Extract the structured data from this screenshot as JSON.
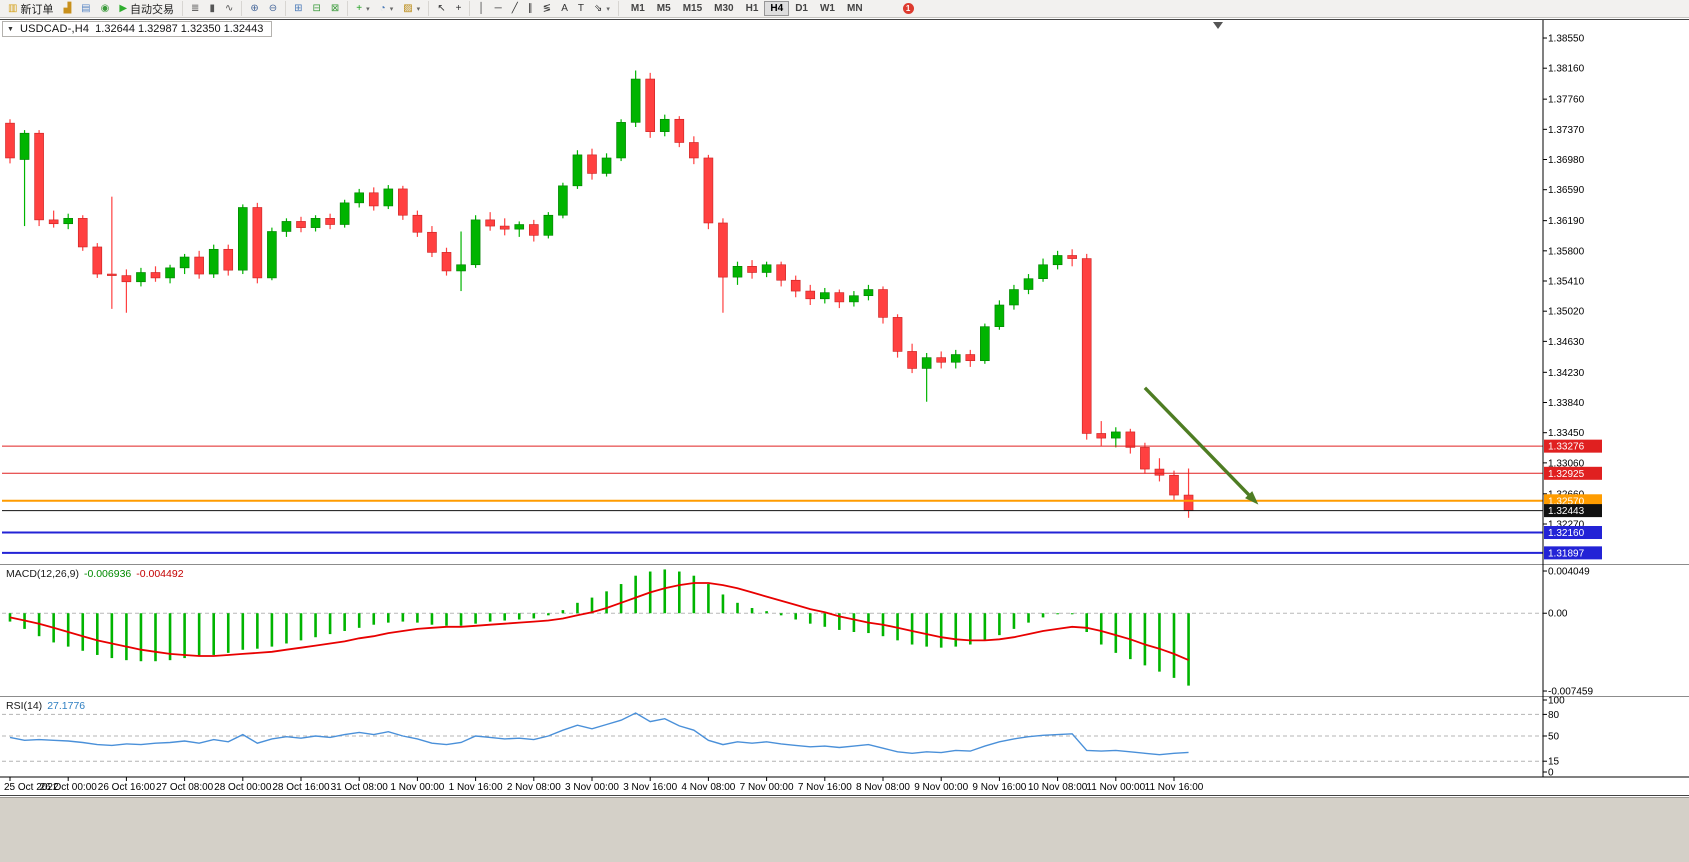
{
  "toolbar": {
    "groups": [
      {
        "items": [
          {
            "name": "new-order-button",
            "icon": "new-order-icon",
            "glyph": "▥",
            "color": "#d4a017",
            "label": "新订单"
          },
          {
            "name": "new-chart-button",
            "icon": "chart-window-icon",
            "glyph": "▟",
            "color": "#c8901c"
          },
          {
            "name": "profiles-button",
            "icon": "profiles-icon",
            "glyph": "▤",
            "color": "#5b87c5"
          },
          {
            "name": "market-watch-button",
            "icon": "market-watch-icon",
            "glyph": "◉",
            "color": "#3a9a3a"
          },
          {
            "name": "autotrading-button",
            "icon": "autotrading-play-icon",
            "glyph": "▶",
            "color": "#2fae2f",
            "label": "自动交易"
          }
        ]
      },
      {
        "items": [
          {
            "name": "bar-chart-button",
            "icon": "bar-chart-icon",
            "glyph": "≣",
            "color": "#555555"
          },
          {
            "name": "candlestick-chart-button",
            "icon": "candlestick-icon",
            "glyph": "▮",
            "color": "#555555"
          },
          {
            "name": "line-chart-button",
            "icon": "line-chart-icon",
            "glyph": "∿",
            "color": "#555555"
          }
        ]
      },
      {
        "items": [
          {
            "name": "zoom-in-button",
            "icon": "zoom-in-icon",
            "glyph": "⊕",
            "color": "#46679a"
          },
          {
            "name": "zoom-out-button",
            "icon": "zoom-out-icon",
            "glyph": "⊖",
            "color": "#46679a"
          }
        ]
      },
      {
        "items": [
          {
            "name": "tile-windows-button",
            "icon": "tile-windows-icon",
            "glyph": "⊞",
            "color": "#4a7ab8"
          },
          {
            "name": "auto-arrange-button",
            "icon": "auto-arrange-icon",
            "glyph": "⊟",
            "color": "#3a9a3a"
          },
          {
            "name": "track-chart-button",
            "icon": "track-chart-icon",
            "glyph": "⊠",
            "color": "#3a9a3a"
          }
        ]
      },
      {
        "items": [
          {
            "name": "indicators-button",
            "icon": "indicator-plus-icon",
            "glyph": "+",
            "color": "#1fa01f",
            "caret": true
          },
          {
            "name": "periods-button",
            "icon": "clock-icon",
            "glyph": "◔",
            "color": "#4a7ab8",
            "caret": true
          },
          {
            "name": "templates-button",
            "icon": "template-icon",
            "glyph": "▨",
            "color": "#b8860b",
            "caret": true
          }
        ]
      },
      {
        "items": [
          {
            "name": "cursor-button",
            "icon": "cursor-icon",
            "glyph": "↖",
            "color": "#333333"
          },
          {
            "name": "crosshair-button",
            "icon": "crosshair-icon",
            "glyph": "+",
            "color": "#333333"
          }
        ]
      },
      {
        "items": [
          {
            "name": "vertical-line-button",
            "icon": "vertical-line-icon",
            "glyph": "│",
            "color": "#333333"
          },
          {
            "name": "horizontal-line-button",
            "icon": "horizontal-line-icon",
            "glyph": "─",
            "color": "#333333"
          },
          {
            "name": "trendline-button",
            "icon": "trendline-icon",
            "glyph": "╱",
            "color": "#333333"
          },
          {
            "name": "channel-button",
            "icon": "channel-icon",
            "glyph": "∥",
            "color": "#333333"
          },
          {
            "name": "fibonacci-button",
            "icon": "fibonacci-icon",
            "glyph": "≶",
            "color": "#333333"
          },
          {
            "name": "text-button",
            "icon": "text-icon",
            "glyph": "A",
            "color": "#333333"
          },
          {
            "name": "label-button",
            "icon": "label-icon",
            "glyph": "T",
            "color": "#333333"
          },
          {
            "name": "arrows-button",
            "icon": "arrow-tool-icon",
            "glyph": "⇘",
            "color": "#333333",
            "caret": true
          }
        ]
      }
    ],
    "timeframes": [
      "M1",
      "M5",
      "M15",
      "M30",
      "H1",
      "H4",
      "D1",
      "W1",
      "MN"
    ],
    "active_timeframe": "H4",
    "notification": {
      "value": "1"
    }
  },
  "chart": {
    "symbol_period": "USDCAD-,H4",
    "ohlc": "1.32644 1.32987 1.32350 1.32443",
    "macd_name": "MACD(12,26,9)",
    "macd_value": "-0.006936",
    "macd_signal_value": "-0.004492",
    "rsi_name": "RSI(14)",
    "rsi_value": "27.1776"
  },
  "chart_data": {
    "type": "candlestick",
    "symbol": "USDCAD",
    "timeframe": "H4",
    "bars_per_label": 4,
    "x_labels": [
      "25 Oct 2022",
      "26 Oct 00:00",
      "26 Oct 16:00",
      "27 Oct 08:00",
      "28 Oct 00:00",
      "28 Oct 16:00",
      "31 Oct 08:00",
      "1 Nov 00:00",
      "1 Nov 16:00",
      "2 Nov 08:00",
      "3 Nov 00:00",
      "3 Nov 16:00",
      "4 Nov 08:00",
      "7 Nov 00:00",
      "7 Nov 16:00",
      "8 Nov 08:00",
      "9 Nov 00:00",
      "9 Nov 16:00",
      "10 Nov 08:00",
      "11 Nov 00:00",
      "11 Nov 16:00"
    ],
    "colors": {
      "up": "#00b400",
      "down": "#ff4040",
      "up_edge": "#007d00",
      "down_edge": "#c92020"
    },
    "main": {
      "ylim": [
        1.31766,
        1.38757
      ],
      "ticks": [
        "1.38550",
        "1.38160",
        "1.37760",
        "1.37370",
        "1.36980",
        "1.36590",
        "1.36190",
        "1.35800",
        "1.35410",
        "1.35020",
        "1.34630",
        "1.34230",
        "1.33840",
        "1.33450",
        "1.33060",
        "1.32660",
        "1.32270"
      ]
    },
    "candles": [
      [
        1.3745,
        1.375,
        1.3693,
        1.37
      ],
      [
        1.3698,
        1.3736,
        1.3612,
        1.3732
      ],
      [
        1.3732,
        1.3736,
        1.3612,
        1.362
      ],
      [
        1.362,
        1.3632,
        1.361,
        1.3615
      ],
      [
        1.3615,
        1.3628,
        1.3608,
        1.3622
      ],
      [
        1.3622,
        1.3626,
        1.358,
        1.3585
      ],
      [
        1.3585,
        1.359,
        1.3545,
        1.355
      ],
      [
        1.355,
        1.365,
        1.3505,
        1.3548
      ],
      [
        1.3548,
        1.3556,
        1.35,
        1.354
      ],
      [
        1.354,
        1.3558,
        1.3534,
        1.3552
      ],
      [
        1.3552,
        1.356,
        1.354,
        1.3545
      ],
      [
        1.3545,
        1.3562,
        1.3538,
        1.3558
      ],
      [
        1.3558,
        1.3576,
        1.355,
        1.3572
      ],
      [
        1.3572,
        1.358,
        1.3544,
        1.355
      ],
      [
        1.355,
        1.3588,
        1.3545,
        1.3582
      ],
      [
        1.3582,
        1.3588,
        1.3548,
        1.3555
      ],
      [
        1.3555,
        1.364,
        1.355,
        1.3636
      ],
      [
        1.3636,
        1.3642,
        1.3538,
        1.3545
      ],
      [
        1.3545,
        1.361,
        1.3542,
        1.3605
      ],
      [
        1.3605,
        1.3622,
        1.3598,
        1.3618
      ],
      [
        1.3618,
        1.3624,
        1.3604,
        1.361
      ],
      [
        1.361,
        1.3626,
        1.3605,
        1.3622
      ],
      [
        1.3622,
        1.3628,
        1.3608,
        1.3614
      ],
      [
        1.3614,
        1.3646,
        1.361,
        1.3642
      ],
      [
        1.3642,
        1.366,
        1.3636,
        1.3655
      ],
      [
        1.3655,
        1.3662,
        1.3632,
        1.3638
      ],
      [
        1.3638,
        1.3665,
        1.3634,
        1.366
      ],
      [
        1.366,
        1.3664,
        1.362,
        1.3626
      ],
      [
        1.3626,
        1.3632,
        1.3598,
        1.3604
      ],
      [
        1.3604,
        1.3612,
        1.3572,
        1.3578
      ],
      [
        1.3578,
        1.3584,
        1.3548,
        1.3554
      ],
      [
        1.3554,
        1.3605,
        1.3528,
        1.3562
      ],
      [
        1.3562,
        1.3626,
        1.3558,
        1.362
      ],
      [
        1.362,
        1.363,
        1.3606,
        1.3612
      ],
      [
        1.3612,
        1.3622,
        1.36,
        1.3608
      ],
      [
        1.3608,
        1.3618,
        1.3598,
        1.3614
      ],
      [
        1.3614,
        1.362,
        1.3592,
        1.36
      ],
      [
        1.36,
        1.363,
        1.3596,
        1.3626
      ],
      [
        1.3626,
        1.3668,
        1.3622,
        1.3664
      ],
      [
        1.3664,
        1.371,
        1.366,
        1.3704
      ],
      [
        1.3704,
        1.3712,
        1.3672,
        1.368
      ],
      [
        1.368,
        1.3706,
        1.3676,
        1.37
      ],
      [
        1.37,
        1.375,
        1.3696,
        1.3746
      ],
      [
        1.3746,
        1.3813,
        1.374,
        1.3802
      ],
      [
        1.3802,
        1.381,
        1.3726,
        1.3734
      ],
      [
        1.3734,
        1.3756,
        1.3728,
        1.375
      ],
      [
        1.375,
        1.3754,
        1.3714,
        1.372
      ],
      [
        1.372,
        1.3728,
        1.3692,
        1.37
      ],
      [
        1.37,
        1.3704,
        1.3608,
        1.3616
      ],
      [
        1.3616,
        1.3622,
        1.35,
        1.3546
      ],
      [
        1.3546,
        1.3566,
        1.3536,
        1.356
      ],
      [
        1.356,
        1.3568,
        1.3544,
        1.3552
      ],
      [
        1.3552,
        1.3566,
        1.3546,
        1.3562
      ],
      [
        1.3562,
        1.3566,
        1.3534,
        1.3542
      ],
      [
        1.3542,
        1.3548,
        1.352,
        1.3528
      ],
      [
        1.3528,
        1.3536,
        1.351,
        1.3518
      ],
      [
        1.3518,
        1.3532,
        1.3512,
        1.3526
      ],
      [
        1.3526,
        1.353,
        1.3506,
        1.3514
      ],
      [
        1.3514,
        1.3528,
        1.3508,
        1.3522
      ],
      [
        1.3522,
        1.3536,
        1.3516,
        1.353
      ],
      [
        1.353,
        1.3534,
        1.3486,
        1.3494
      ],
      [
        1.3494,
        1.3498,
        1.3442,
        1.345
      ],
      [
        1.345,
        1.346,
        1.3422,
        1.3428
      ],
      [
        1.3428,
        1.3448,
        1.3385,
        1.3442
      ],
      [
        1.3442,
        1.345,
        1.3428,
        1.3436
      ],
      [
        1.3436,
        1.3452,
        1.3428,
        1.3446
      ],
      [
        1.3446,
        1.3452,
        1.343,
        1.3438
      ],
      [
        1.3438,
        1.3486,
        1.3434,
        1.3482
      ],
      [
        1.3482,
        1.3516,
        1.3478,
        1.351
      ],
      [
        1.351,
        1.3536,
        1.3504,
        1.353
      ],
      [
        1.353,
        1.355,
        1.3524,
        1.3544
      ],
      [
        1.3544,
        1.357,
        1.354,
        1.3562
      ],
      [
        1.3562,
        1.358,
        1.3556,
        1.3574
      ],
      [
        1.3574,
        1.3582,
        1.356,
        1.357
      ],
      [
        1.357,
        1.3576,
        1.3336,
        1.3344
      ],
      [
        1.3344,
        1.336,
        1.3328,
        1.3338
      ],
      [
        1.3338,
        1.3352,
        1.3326,
        1.3346
      ],
      [
        1.3346,
        1.335,
        1.3318,
        1.3326
      ],
      [
        1.3326,
        1.3332,
        1.3292,
        1.3298
      ],
      [
        1.3298,
        1.3312,
        1.3282,
        1.329
      ],
      [
        1.329,
        1.3296,
        1.3258,
        1.32644
      ],
      [
        1.32644,
        1.32987,
        1.3235,
        1.32443
      ]
    ],
    "hlines": [
      {
        "value": 1.33276,
        "label": "1.33276",
        "color": "#e02020",
        "width": 1,
        "role": "resistance-line"
      },
      {
        "value": 1.32925,
        "label": "1.32925",
        "color": "#e02020",
        "width": 1,
        "role": "resistance-line"
      },
      {
        "value": 1.3257,
        "label": "1.32570",
        "color": "#ff9c00",
        "width": 2,
        "role": "support-line"
      },
      {
        "value": 1.32443,
        "label": "1.32443",
        "color": "#111111",
        "width": 1,
        "role": "bid-price-line"
      },
      {
        "value": 1.3216,
        "label": "1.32160",
        "color": "#2323d6",
        "width": 2,
        "role": "support-line"
      },
      {
        "value": 1.31897,
        "label": "1.31897",
        "color": "#2323d6",
        "width": 2,
        "role": "support-line"
      }
    ],
    "arrow": {
      "from_bar": 78,
      "from_price": 1.3403,
      "to_bar": 85.8,
      "to_price": 1.3252,
      "color": "#4e7d23"
    },
    "macd": {
      "ylim": [
        -0.00784,
        0.00453
      ],
      "axis_labels": [
        {
          "text": "0.004049",
          "value": 0.004049
        },
        {
          "text": "0.00",
          "value": 0
        },
        {
          "text": "-0.007459",
          "value": -0.007459
        }
      ],
      "hist_color": "#00b400",
      "signal_color": "#e80000",
      "histogram": [
        -0.0008,
        -0.0015,
        -0.0022,
        -0.0028,
        -0.0032,
        -0.0036,
        -0.004,
        -0.0043,
        -0.0045,
        -0.0046,
        -0.0046,
        -0.0045,
        -0.0043,
        -0.0041,
        -0.004,
        -0.0038,
        -0.0035,
        -0.0034,
        -0.0032,
        -0.0029,
        -0.0026,
        -0.0023,
        -0.002,
        -0.0017,
        -0.0014,
        -0.0011,
        -0.0009,
        -0.0008,
        -0.0009,
        -0.0011,
        -0.0012,
        -0.0012,
        -0.001,
        -0.0008,
        -0.0007,
        -0.0006,
        -0.0005,
        -0.0002,
        0.0003,
        0.001,
        0.0015,
        0.0021,
        0.0028,
        0.0036,
        0.004,
        0.0042,
        0.004,
        0.0036,
        0.0028,
        0.0018,
        0.001,
        0.0005,
        0.0002,
        -0.0002,
        -0.0006,
        -0.001,
        -0.0013,
        -0.0016,
        -0.0018,
        -0.0019,
        -0.0022,
        -0.0026,
        -0.003,
        -0.0032,
        -0.0033,
        -0.0032,
        -0.003,
        -0.0026,
        -0.0021,
        -0.0015,
        -0.0009,
        -0.0004,
        -0.0001,
        -0.0001,
        -0.0018,
        -0.003,
        -0.0038,
        -0.0044,
        -0.005,
        -0.0056,
        -0.0062,
        -0.006936
      ],
      "signal": [
        -0.0004,
        -0.0007,
        -0.001,
        -0.0014,
        -0.0018,
        -0.0022,
        -0.0026,
        -0.0029,
        -0.0032,
        -0.0035,
        -0.0037,
        -0.0039,
        -0.004,
        -0.0041,
        -0.0041,
        -0.004,
        -0.0039,
        -0.0038,
        -0.0037,
        -0.0035,
        -0.0033,
        -0.0031,
        -0.0029,
        -0.0027,
        -0.0024,
        -0.0022,
        -0.0019,
        -0.0017,
        -0.0015,
        -0.0014,
        -0.0013,
        -0.0013,
        -0.0012,
        -0.0011,
        -0.001,
        -0.0009,
        -0.0008,
        -0.0007,
        -0.0005,
        -0.0002,
        0.0001,
        0.0005,
        0.001,
        0.0015,
        0.002,
        0.0024,
        0.0027,
        0.0029,
        0.0029,
        0.0027,
        0.0024,
        0.002,
        0.0016,
        0.0012,
        0.0008,
        0.0004,
        0.0001,
        -0.0003,
        -0.0006,
        -0.0009,
        -0.0011,
        -0.0014,
        -0.0017,
        -0.002,
        -0.0023,
        -0.0025,
        -0.0026,
        -0.0026,
        -0.0025,
        -0.0023,
        -0.002,
        -0.0017,
        -0.0015,
        -0.0013,
        -0.0014,
        -0.0017,
        -0.0021,
        -0.0025,
        -0.003,
        -0.0034,
        -0.0039,
        -0.004492
      ]
    },
    "rsi": {
      "ylim": [
        0,
        100
      ],
      "color": "#4a90d9",
      "levels": [
        {
          "text": "100",
          "value": 100,
          "dashed": false
        },
        {
          "text": "80",
          "value": 80,
          "dashed": true
        },
        {
          "text": "50",
          "value": 50,
          "dashed": true
        },
        {
          "text": "15",
          "value": 15,
          "dashed": true
        },
        {
          "text": "0",
          "value": 0,
          "dashed": false
        }
      ],
      "values": [
        48,
        44,
        45,
        44,
        43,
        41,
        38,
        37,
        39,
        38,
        40,
        41,
        43,
        40,
        45,
        42,
        52,
        40,
        46,
        49,
        47,
        50,
        48,
        52,
        55,
        52,
        56,
        50,
        46,
        40,
        38,
        41,
        50,
        48,
        46,
        47,
        45,
        50,
        58,
        65,
        60,
        66,
        72,
        82,
        70,
        74,
        64,
        58,
        44,
        38,
        42,
        40,
        42,
        39,
        37,
        35,
        36,
        34,
        36,
        38,
        33,
        28,
        26,
        28,
        27,
        30,
        29,
        36,
        42,
        46,
        49,
        51,
        52,
        53,
        30,
        29,
        30,
        28,
        26,
        24,
        26,
        27.1776
      ]
    }
  }
}
